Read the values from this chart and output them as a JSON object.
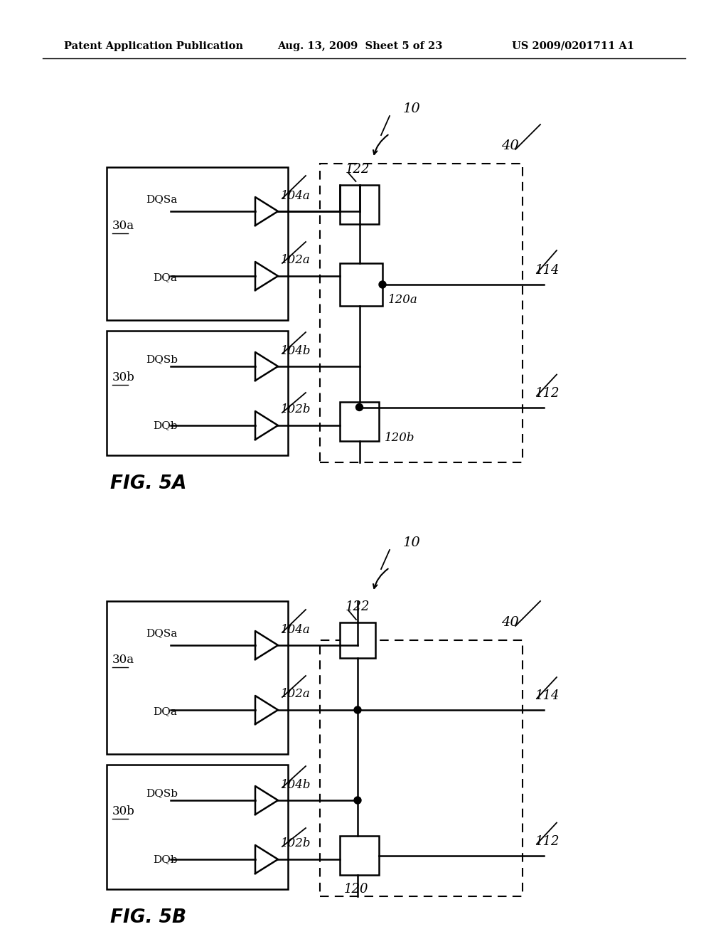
{
  "header_left": "Patent Application Publication",
  "header_mid": "Aug. 13, 2009  Sheet 5 of 23",
  "header_right": "US 2009/0201711 A1",
  "fig5a_label": "FIG. 5A",
  "fig5b_label": "FIG. 5B",
  "bg_color": "#ffffff",
  "line_color": "#000000"
}
